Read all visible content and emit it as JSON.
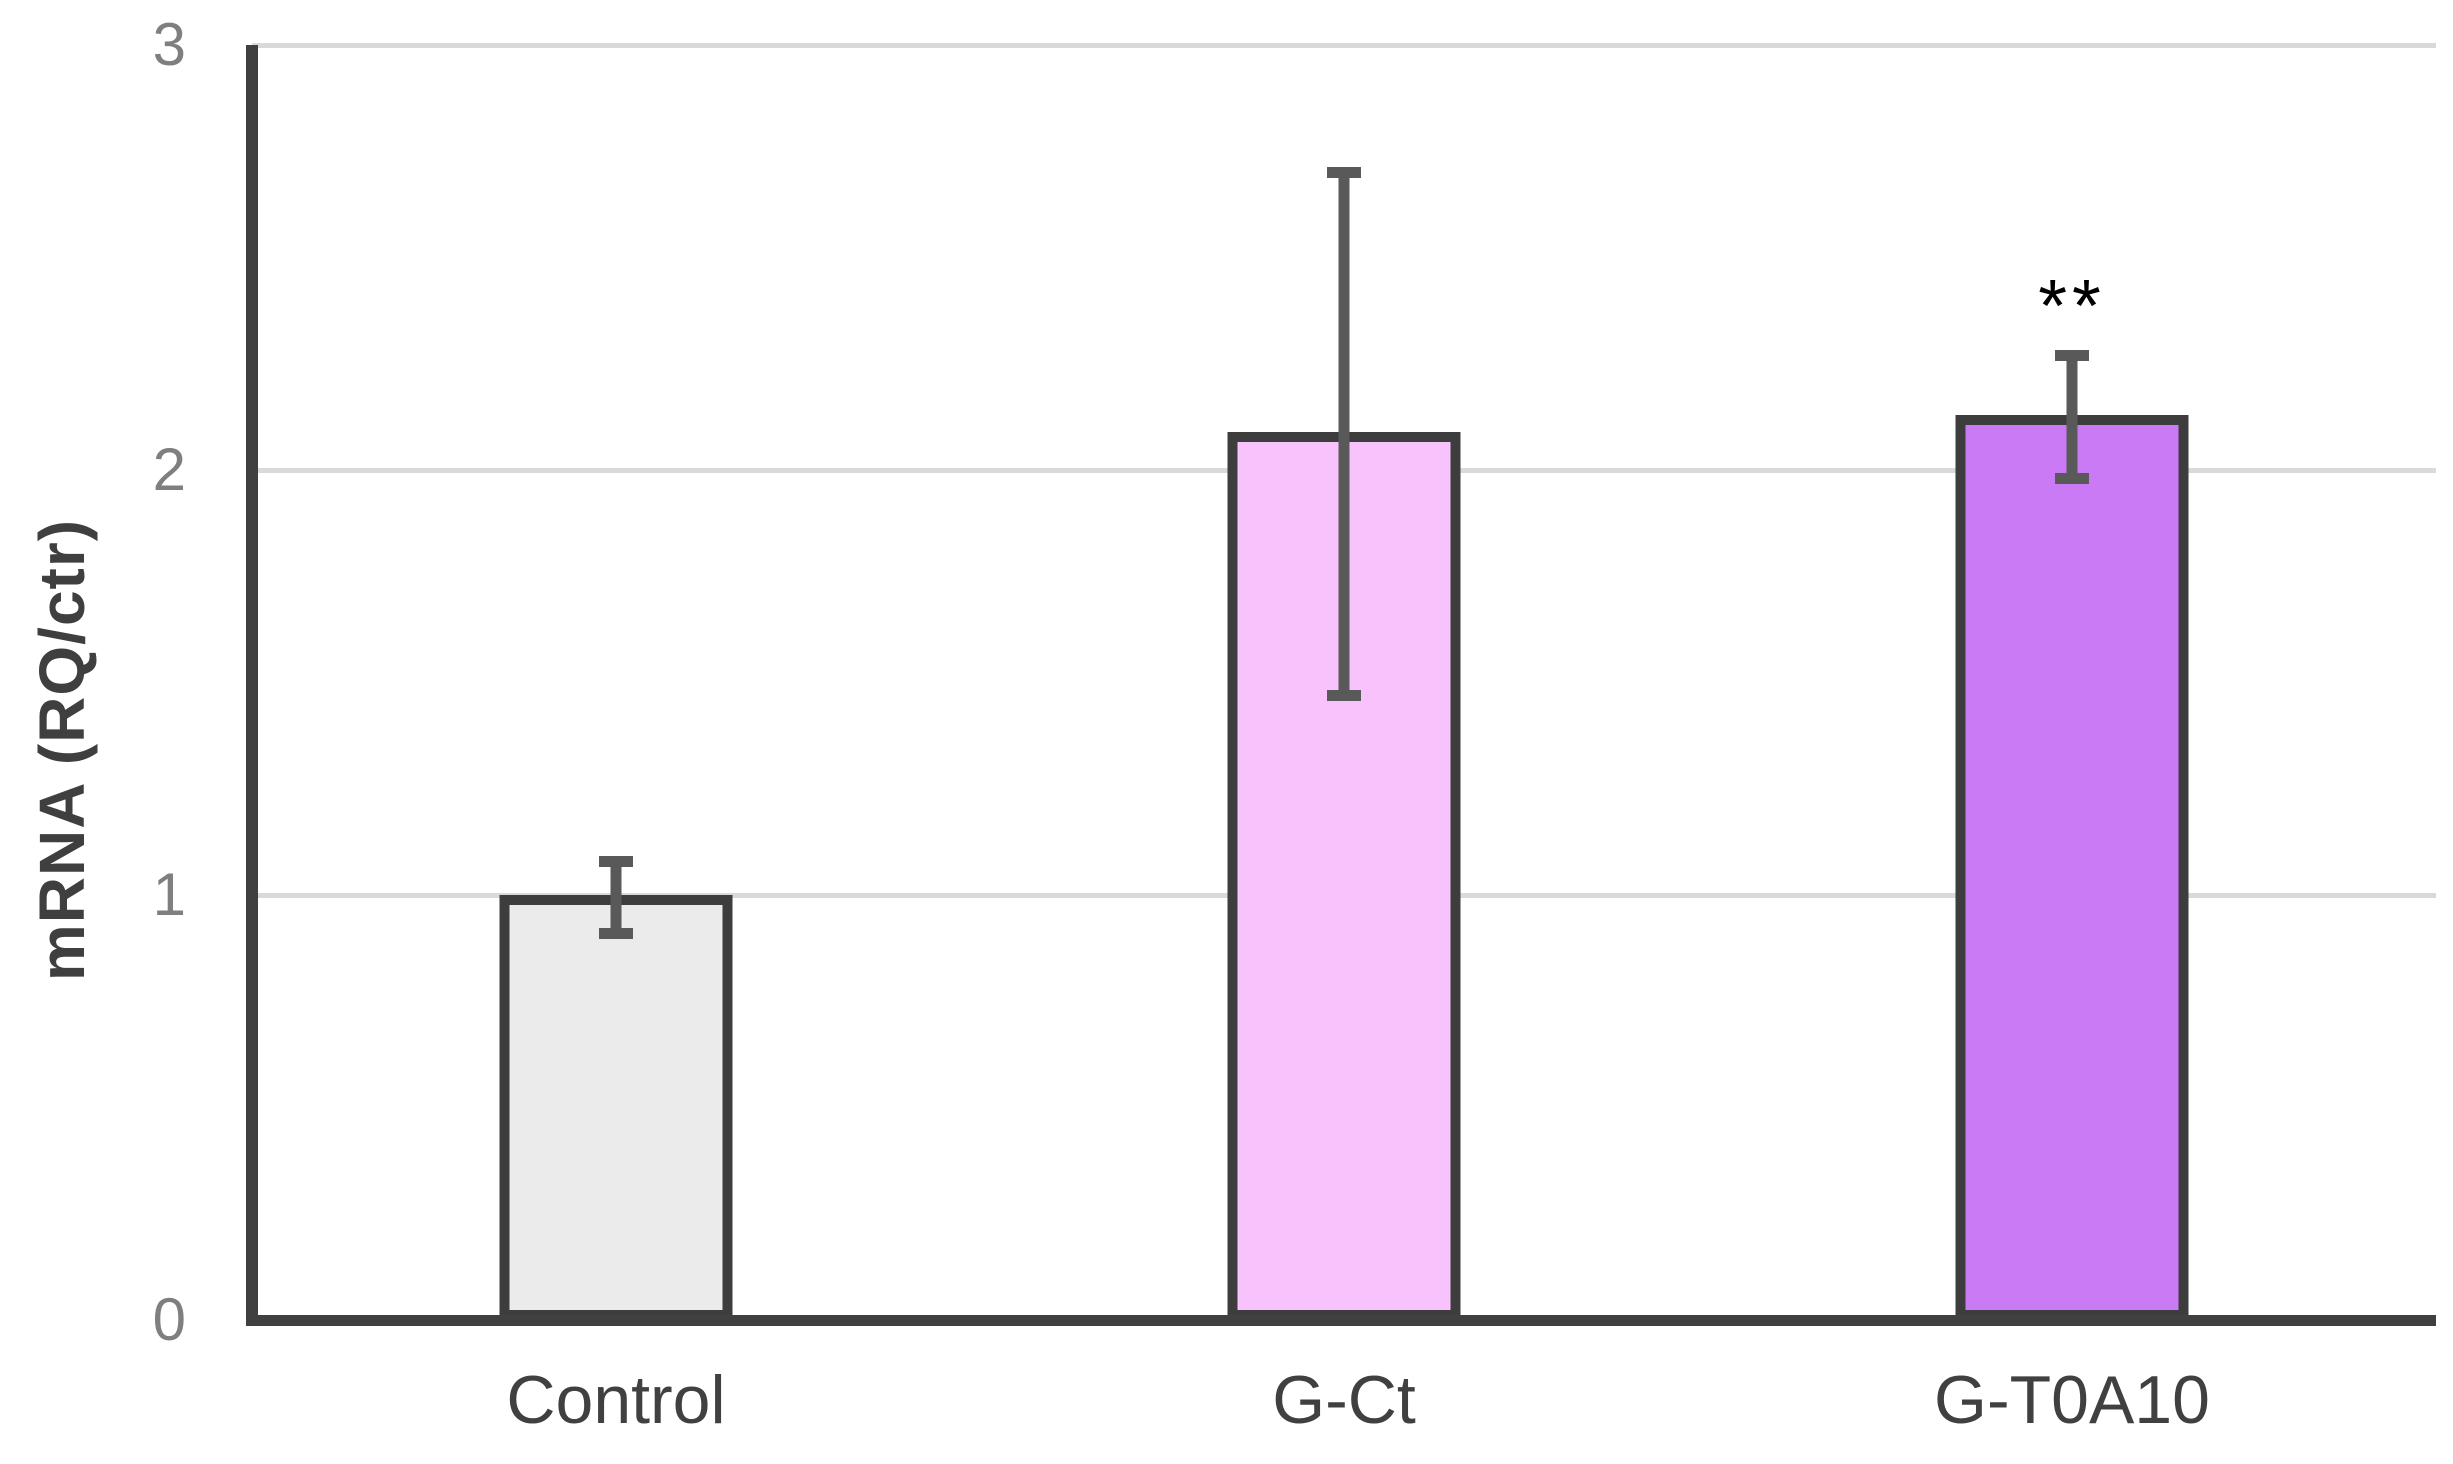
{
  "chart_data": {
    "type": "bar",
    "title": "",
    "xlabel": "",
    "ylabel": "mRNA (RQ/ctr)",
    "ylim": [
      0,
      3
    ],
    "yticks": [
      0,
      1,
      2,
      3
    ],
    "grid": true,
    "legend_position": "none",
    "categories": [
      "Control",
      "G-Ct",
      "G-T0A10"
    ],
    "values": [
      1.0,
      2.09,
      2.13
    ],
    "error_bars": {
      "plus": [
        0.08,
        0.61,
        0.14
      ],
      "minus": [
        0.09,
        0.62,
        0.15
      ]
    },
    "annotations": [
      {
        "category": "G-T0A10",
        "text": "**"
      }
    ],
    "colors": {
      "background": "#ffffff",
      "bar_fills": [
        "#ebebeb",
        "#f8c3fc",
        "#cb7af5"
      ],
      "bar_border": "#3d3d3d",
      "error_bar": "#595959",
      "gridline": "#d9d9d9",
      "axis": "#404040",
      "tick_labels": "#7f7f7f",
      "category_labels": "#404040",
      "ylabel_color": "#3f3f3f",
      "annotation": "#000000"
    }
  }
}
